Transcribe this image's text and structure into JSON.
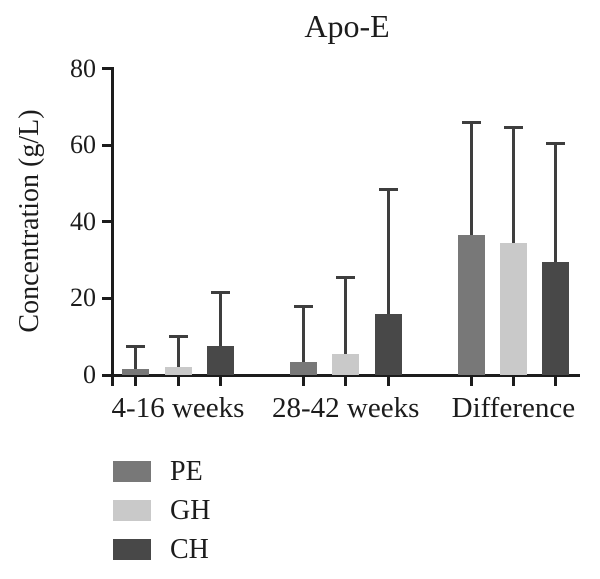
{
  "chart_data": {
    "type": "bar",
    "title": "Apo-E",
    "xlabel": "",
    "ylabel": "Concentration (g/L)",
    "ylim": [
      0,
      80
    ],
    "yticks": [
      0,
      20,
      40,
      60,
      80
    ],
    "grid": false,
    "error_bars": "upper",
    "legend_position": "bottom-left",
    "categories": [
      "4-16 weeks",
      "28-42 weeks",
      "Difference"
    ],
    "series": [
      {
        "name": "PE",
        "color": "#787878",
        "values": [
          1.5,
          3.5,
          36.5
        ],
        "error_top": [
          7.5,
          18,
          66
        ]
      },
      {
        "name": "GH",
        "color": "#c9c9c9",
        "values": [
          2,
          5.5,
          34.5
        ],
        "error_top": [
          10,
          25.5,
          64.5
        ]
      },
      {
        "name": "CH",
        "color": "#484848",
        "values": [
          7.5,
          16,
          29.5
        ],
        "error_top": [
          21.5,
          48.5,
          60.5
        ]
      }
    ]
  },
  "colors": {
    "axis": "#1c1c1c",
    "error_bar": "#3e3e3e",
    "background": "#ffffff",
    "text": "#1c1c1c"
  }
}
